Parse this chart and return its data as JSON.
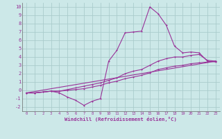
{
  "xlabel": "Windchill (Refroidissement éolien,°C)",
  "bg_color": "#cce8e8",
  "grid_color": "#aacccc",
  "line_color": "#993399",
  "xlim": [
    -0.5,
    23.5
  ],
  "ylim": [
    -2.5,
    10.5
  ],
  "xticks": [
    0,
    1,
    2,
    3,
    4,
    5,
    6,
    7,
    8,
    9,
    10,
    11,
    12,
    13,
    14,
    15,
    16,
    17,
    18,
    19,
    20,
    21,
    22,
    23
  ],
  "yticks": [
    -2,
    -1,
    0,
    1,
    2,
    3,
    4,
    5,
    6,
    7,
    8,
    9,
    10
  ],
  "series1_x": [
    0,
    1,
    2,
    3,
    4,
    5,
    6,
    7,
    8,
    9,
    10,
    11,
    12,
    13,
    14,
    15,
    16,
    17,
    18,
    19,
    20,
    21,
    22,
    23
  ],
  "series1_y": [
    -0.3,
    -0.3,
    -0.2,
    -0.1,
    -0.3,
    -0.8,
    -1.2,
    -1.8,
    -1.3,
    -1.0,
    3.5,
    4.8,
    6.9,
    7.0,
    7.1,
    10.0,
    9.2,
    7.8,
    5.3,
    4.5,
    4.6,
    4.5,
    3.5,
    3.4
  ],
  "series2_x": [
    0,
    1,
    2,
    3,
    4,
    5,
    6,
    7,
    8,
    9,
    10,
    11,
    12,
    13,
    14,
    15,
    16,
    17,
    18,
    19,
    20,
    21,
    22,
    23
  ],
  "series2_y": [
    -0.3,
    -0.3,
    -0.2,
    -0.1,
    -0.1,
    0.0,
    0.1,
    0.2,
    0.4,
    0.6,
    0.9,
    1.1,
    1.4,
    1.6,
    1.8,
    2.1,
    2.5,
    2.7,
    2.9,
    3.0,
    3.2,
    3.3,
    3.4,
    3.5
  ],
  "series3_x": [
    0,
    1,
    2,
    3,
    4,
    5,
    6,
    7,
    8,
    9,
    10,
    11,
    12,
    13,
    14,
    15,
    16,
    17,
    18,
    19,
    20,
    21,
    22,
    23
  ],
  "series3_y": [
    -0.3,
    -0.3,
    -0.2,
    -0.1,
    -0.1,
    0.1,
    0.3,
    0.5,
    0.7,
    0.9,
    1.2,
    1.5,
    2.0,
    2.3,
    2.5,
    3.0,
    3.5,
    3.8,
    4.0,
    4.0,
    4.2,
    4.3,
    3.6,
    3.5
  ],
  "series4_x": [
    0,
    23
  ],
  "series4_y": [
    -0.3,
    3.5
  ]
}
